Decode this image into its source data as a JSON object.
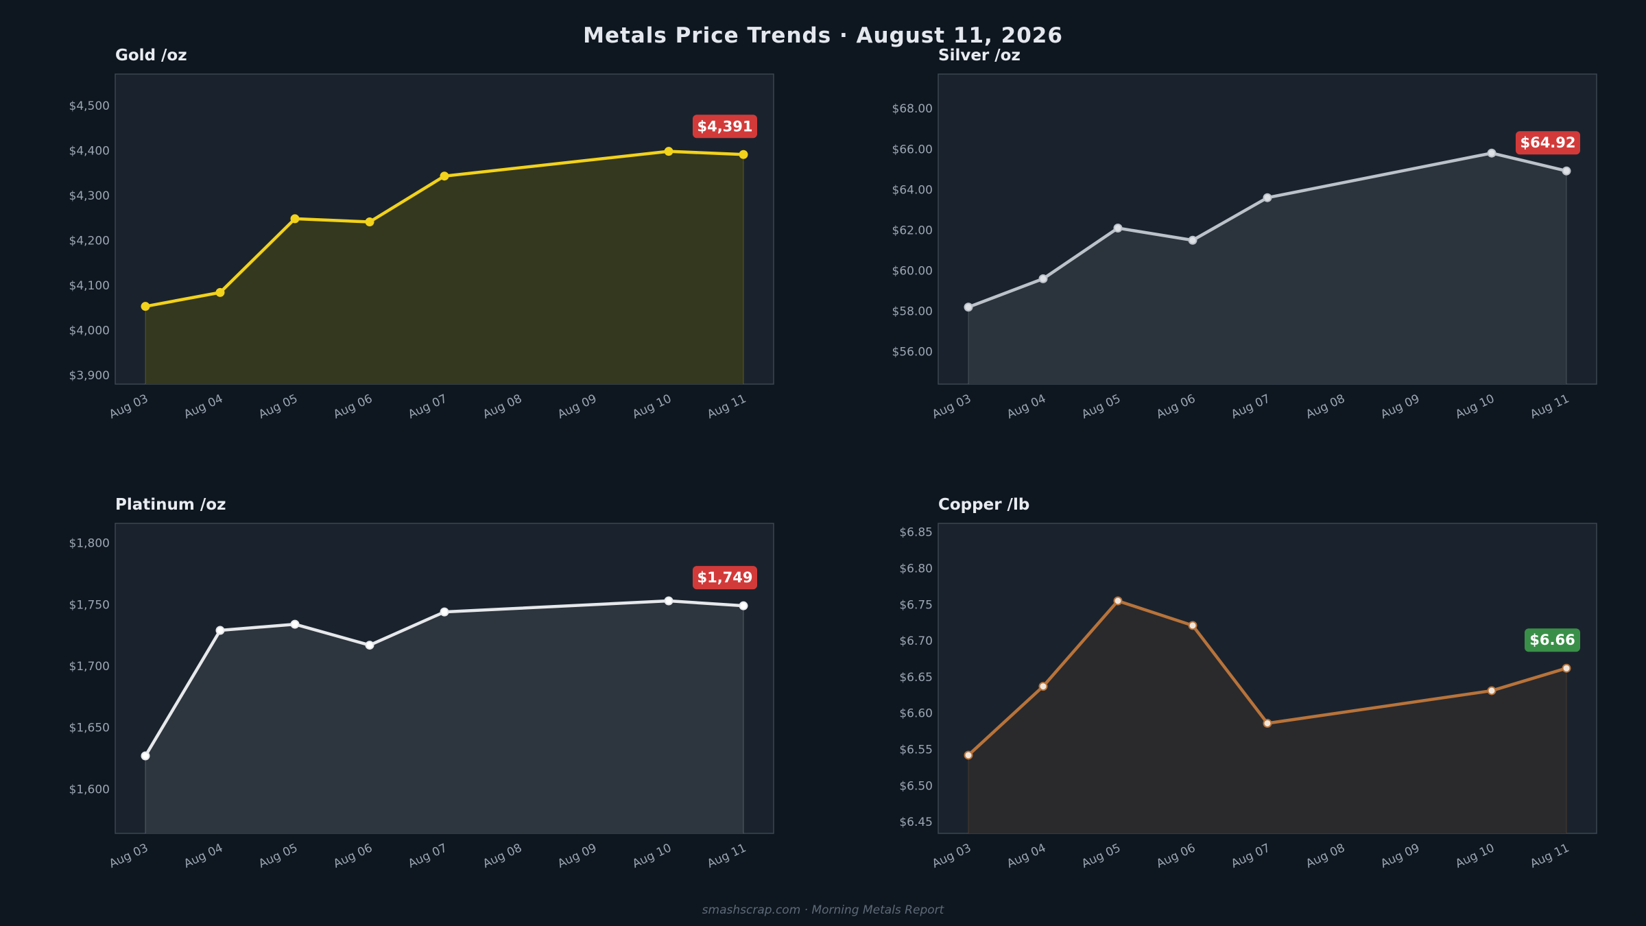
{
  "header": {
    "title": "Metals Price Trends  ·  August 11, 2026",
    "footer": "smashscrap.com  ·  Morning Metals Report"
  },
  "chart_data": [
    {
      "type": "line",
      "title": "Gold  /oz",
      "x": [
        "Aug 03",
        "Aug 04",
        "Aug 05",
        "Aug 06",
        "Aug 07",
        "Aug 10",
        "Aug 11"
      ],
      "x_ticks": [
        "Aug 03",
        "Aug 04",
        "Aug 05",
        "Aug 06",
        "Aug 07",
        "Aug 08",
        "Aug 09",
        "Aug 10",
        "Aug 11"
      ],
      "values": [
        4053,
        4084,
        4248,
        4241,
        4343,
        4398,
        4391
      ],
      "yticks": [
        3900,
        4000,
        4100,
        4200,
        4300,
        4400,
        4500
      ],
      "ytick_labels": [
        "$3,900",
        "$4,000",
        "$4,100",
        "$4,200",
        "$4,300",
        "$4,400",
        "$4,500"
      ],
      "ylim": [
        3880,
        4570
      ],
      "badge": "$4,391",
      "badge_color": "#d23a3a",
      "line_color": "#f2d21b",
      "fill_color": "#34381f",
      "marker_fill": "#f2d21b"
    },
    {
      "type": "line",
      "title": "Silver  /oz",
      "x": [
        "Aug 03",
        "Aug 04",
        "Aug 05",
        "Aug 06",
        "Aug 07",
        "Aug 10",
        "Aug 11"
      ],
      "x_ticks": [
        "Aug 03",
        "Aug 04",
        "Aug 05",
        "Aug 06",
        "Aug 07",
        "Aug 08",
        "Aug 09",
        "Aug 10",
        "Aug 11"
      ],
      "values": [
        58.2,
        59.6,
        62.1,
        61.5,
        63.6,
        65.8,
        64.92
      ],
      "yticks": [
        56,
        58,
        60,
        62,
        64,
        66,
        68
      ],
      "ytick_labels": [
        "$56.00",
        "$58.00",
        "$60.00",
        "$62.00",
        "$64.00",
        "$66.00",
        "$68.00"
      ],
      "ylim": [
        54.4,
        69.7
      ],
      "badge": "$64.92",
      "badge_color": "#d23a3a",
      "line_color": "#bcc2c9",
      "fill_color": "#2b333c",
      "marker_fill": "#dde1e6"
    },
    {
      "type": "line",
      "title": "Platinum  /oz",
      "x": [
        "Aug 03",
        "Aug 04",
        "Aug 05",
        "Aug 06",
        "Aug 07",
        "Aug 10",
        "Aug 11"
      ],
      "x_ticks": [
        "Aug 03",
        "Aug 04",
        "Aug 05",
        "Aug 06",
        "Aug 07",
        "Aug 08",
        "Aug 09",
        "Aug 10",
        "Aug 11"
      ],
      "values": [
        1627,
        1729,
        1734,
        1717,
        1744,
        1753,
        1749
      ],
      "yticks": [
        1600,
        1650,
        1700,
        1750,
        1800
      ],
      "ytick_labels": [
        "$1,600",
        "$1,650",
        "$1,700",
        "$1,750",
        "$1,800"
      ],
      "ylim": [
        1564,
        1816
      ],
      "badge": "$1,749",
      "badge_color": "#d23a3a",
      "line_color": "#e6e8eb",
      "fill_color": "#2d353e",
      "marker_fill": "#ffffff"
    },
    {
      "type": "line",
      "title": "Copper  /lb",
      "x": [
        "Aug 03",
        "Aug 04",
        "Aug 05",
        "Aug 06",
        "Aug 07",
        "Aug 10",
        "Aug 11"
      ],
      "x_ticks": [
        "Aug 03",
        "Aug 04",
        "Aug 05",
        "Aug 06",
        "Aug 07",
        "Aug 08",
        "Aug 09",
        "Aug 10",
        "Aug 11"
      ],
      "values": [
        6.542,
        6.637,
        6.755,
        6.721,
        6.586,
        6.631,
        6.662
      ],
      "yticks": [
        6.45,
        6.5,
        6.55,
        6.6,
        6.65,
        6.7,
        6.75,
        6.8,
        6.85
      ],
      "ytick_labels": [
        "$6.45",
        "$6.50",
        "$6.55",
        "$6.60",
        "$6.65",
        "$6.70",
        "$6.75",
        "$6.80",
        "$6.85"
      ],
      "ylim": [
        6.434,
        6.862
      ],
      "badge": "$6.66",
      "badge_color": "#3a8f48",
      "line_color": "#b8733a",
      "fill_color": "#2a2a2d",
      "marker_fill": "#f0e6dc"
    }
  ]
}
